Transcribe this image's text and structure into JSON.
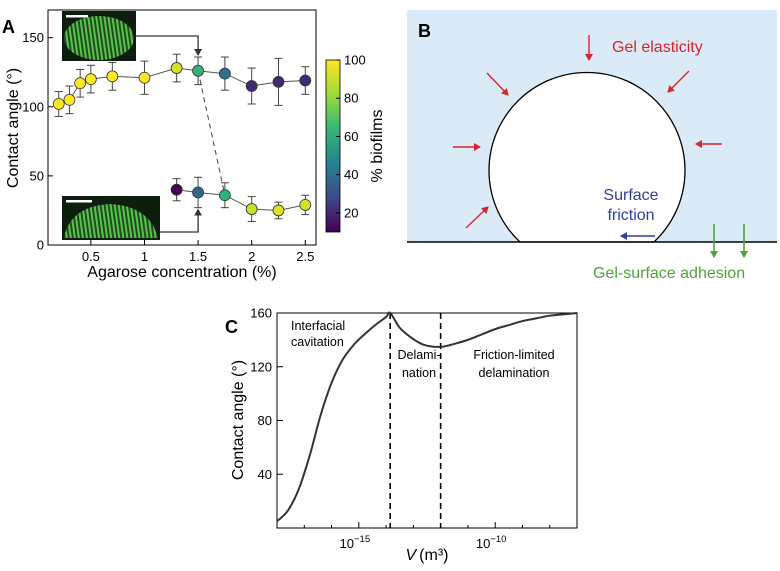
{
  "chart_data": [
    {
      "panel": "A",
      "type": "scatter",
      "xlabel": "Agarose concentration (%)",
      "ylabel": "Contact angle (°)",
      "xlim": [
        0.1,
        2.6
      ],
      "ylim": [
        0,
        170
      ],
      "xticks": [
        0.5,
        1,
        1.5,
        2,
        2.5
      ],
      "xtick_labels": [
        "0.5",
        "1",
        "1.5",
        "2",
        "2.5"
      ],
      "yticks": [
        0,
        50,
        100,
        150
      ],
      "ytick_labels": [
        "0",
        "50",
        "100",
        "150"
      ],
      "colorbar": {
        "label": "% biofilms",
        "range": [
          10,
          100
        ],
        "ticks": [
          20,
          40,
          60,
          80,
          100
        ],
        "tick_labels": [
          "20",
          "40",
          "60",
          "80",
          "100"
        ]
      },
      "series": [
        {
          "name": "upper branch",
          "points": [
            {
              "x": 0.2,
              "y": 102,
              "err": 9,
              "pct": 100
            },
            {
              "x": 0.3,
              "y": 105,
              "err": 10,
              "pct": 100
            },
            {
              "x": 0.4,
              "y": 117,
              "err": 10,
              "pct": 100
            },
            {
              "x": 0.5,
              "y": 120,
              "err": 10,
              "pct": 100
            },
            {
              "x": 0.7,
              "y": 122,
              "err": 10,
              "pct": 100
            },
            {
              "x": 1.0,
              "y": 121,
              "err": 12,
              "pct": 100
            },
            {
              "x": 1.3,
              "y": 128,
              "err": 10,
              "pct": 92
            },
            {
              "x": 1.5,
              "y": 126,
              "err": 10,
              "pct": 62
            },
            {
              "x": 1.75,
              "y": 124,
              "err": 12,
              "pct": 40
            },
            {
              "x": 2.0,
              "y": 115,
              "err": 13,
              "pct": 20
            },
            {
              "x": 2.25,
              "y": 118,
              "err": 17,
              "pct": 20
            },
            {
              "x": 2.5,
              "y": 119,
              "err": 10,
              "pct": 20
            }
          ]
        },
        {
          "name": "lower branch",
          "points": [
            {
              "x": 1.3,
              "y": 40,
              "err": 8,
              "pct": 10
            },
            {
              "x": 1.5,
              "y": 38,
              "err": 11,
              "pct": 38
            },
            {
              "x": 1.75,
              "y": 36,
              "err": 9,
              "pct": 62
            },
            {
              "x": 2.0,
              "y": 26,
              "err": 9,
              "pct": 90
            },
            {
              "x": 2.25,
              "y": 25,
              "err": 6,
              "pct": 94
            },
            {
              "x": 2.5,
              "y": 29,
              "err": 7,
              "pct": 92
            }
          ]
        }
      ],
      "transition_link": {
        "from": {
          "x": 1.5,
          "y": 126
        },
        "to": {
          "x": 1.75,
          "y": 36
        }
      },
      "insets": [
        "upper biofilm image",
        "lower biofilm image"
      ]
    },
    {
      "panel": "C",
      "type": "line",
      "xlabel_var": "V",
      "xlabel_unit": "(m³)",
      "ylabel": "Contact angle (°)",
      "xscale": "log",
      "xlim_log10": [
        -18,
        -7
      ],
      "ylim": [
        0,
        160
      ],
      "xticks_log10": [
        -15,
        -10
      ],
      "xtick_base": "10",
      "xtick_exps": [
        "−15",
        "−10"
      ],
      "yticks": [
        40,
        80,
        120,
        160
      ],
      "ytick_labels": [
        "40",
        "80",
        "120",
        "160"
      ],
      "curve": [
        {
          "x": -18.0,
          "y": 5
        },
        {
          "x": -17.6,
          "y": 13
        },
        {
          "x": -17.2,
          "y": 29
        },
        {
          "x": -16.8,
          "y": 54
        },
        {
          "x": -16.4,
          "y": 84
        },
        {
          "x": -16.0,
          "y": 108
        },
        {
          "x": -15.6,
          "y": 125
        },
        {
          "x": -15.2,
          "y": 136
        },
        {
          "x": -14.8,
          "y": 144
        },
        {
          "x": -14.4,
          "y": 151
        },
        {
          "x": -14.0,
          "y": 157
        },
        {
          "x": -13.85,
          "y": 160
        },
        {
          "x": -13.5,
          "y": 149
        },
        {
          "x": -13.1,
          "y": 142
        },
        {
          "x": -12.7,
          "y": 137
        },
        {
          "x": -12.3,
          "y": 135
        },
        {
          "x": -11.9,
          "y": 135
        },
        {
          "x": -11.5,
          "y": 137
        },
        {
          "x": -11.0,
          "y": 140
        },
        {
          "x": -10.5,
          "y": 144
        },
        {
          "x": -10.0,
          "y": 148
        },
        {
          "x": -9.5,
          "y": 151
        },
        {
          "x": -9.0,
          "y": 154
        },
        {
          "x": -8.5,
          "y": 156
        },
        {
          "x": -8.0,
          "y": 158
        },
        {
          "x": -7.5,
          "y": 159
        },
        {
          "x": -7.0,
          "y": 160
        }
      ],
      "vlines_log10": [
        -13.85,
        -12.0
      ],
      "regions": [
        "Interfacial cavitation",
        "Delamination",
        "Friction-limited delamination"
      ]
    }
  ],
  "panel_labels": {
    "a": "A",
    "b": "B",
    "c": "C"
  },
  "panel_b": {
    "gel_elasticity": "Gel elasticity",
    "surface_friction_line1": "Surface",
    "surface_friction_line2": "friction",
    "gel_surface_adhesion": "Gel-surface adhesion",
    "colors": {
      "background": "#daeaf6",
      "elasticity": "#d7262b",
      "friction": "#2f3f9e",
      "adhesion": "#4ea33a"
    }
  },
  "panel_c_text": {
    "region1_line1": "Interfacial",
    "region1_line2": "cavitation",
    "region2_line1": "Delami-",
    "region2_line2": "nation",
    "region3_line1": "Friction-limited",
    "region3_line2": "delamination"
  }
}
